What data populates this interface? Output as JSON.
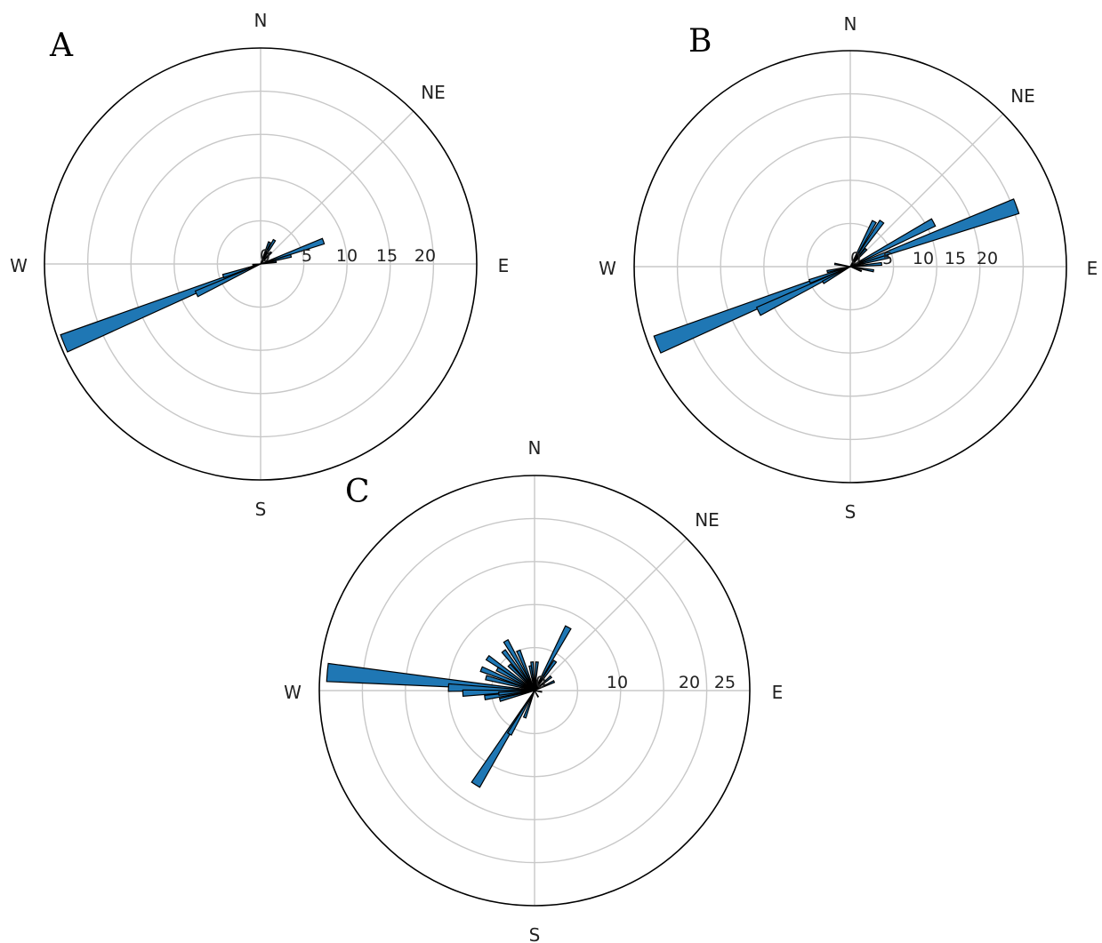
{
  "chart_data": [
    {
      "type": "polar-bar",
      "panel_label": "A",
      "direction_labels": [
        "N",
        "NE",
        "E",
        "S",
        "W"
      ],
      "radial_ticks": [
        "0",
        "5",
        "10",
        "15",
        "20"
      ],
      "rmax": 27.5,
      "bar_width_deg": 5,
      "bar_color": "#1f77b4",
      "bars": [
        {
          "bearing": 22,
          "value": 3
        },
        {
          "bearing": 30,
          "value": 3.5
        },
        {
          "bearing": 42,
          "value": 2
        },
        {
          "bearing": 70,
          "value": 8.5
        },
        {
          "bearing": 75,
          "value": 4
        },
        {
          "bearing": 82,
          "value": 2
        },
        {
          "bearing": 245,
          "value": 9
        },
        {
          "bearing": 248,
          "value": 27
        },
        {
          "bearing": 252,
          "value": 5
        },
        {
          "bearing": 265,
          "value": 1
        }
      ]
    },
    {
      "type": "polar-bar",
      "panel_label": "B",
      "direction_labels": [
        "N",
        "NE",
        "E",
        "S",
        "W"
      ],
      "radial_ticks": [
        "0",
        "5",
        "10",
        "15",
        "20"
      ],
      "rmax": 27.5,
      "bar_width_deg": 5,
      "bar_color": "#1f77b4",
      "bars": [
        {
          "bearing": 28,
          "value": 6.5
        },
        {
          "bearing": 35,
          "value": 7
        },
        {
          "bearing": 42,
          "value": 3
        },
        {
          "bearing": 62,
          "value": 12
        },
        {
          "bearing": 70,
          "value": 22.5
        },
        {
          "bearing": 75,
          "value": 5
        },
        {
          "bearing": 85,
          "value": 4
        },
        {
          "bearing": 100,
          "value": 3
        },
        {
          "bearing": 112,
          "value": 1.5
        },
        {
          "bearing": 240,
          "value": 4
        },
        {
          "bearing": 244,
          "value": 13
        },
        {
          "bearing": 248,
          "value": 26.5
        },
        {
          "bearing": 250,
          "value": 5.5
        },
        {
          "bearing": 258,
          "value": 3
        },
        {
          "bearing": 280,
          "value": 2
        }
      ]
    },
    {
      "type": "polar-bar",
      "panel_label": "C",
      "direction_labels": [
        "N",
        "NE",
        "E",
        "S",
        "W"
      ],
      "radial_ticks": [
        "0",
        "10",
        "20",
        "25"
      ],
      "rmax": 30,
      "bar_width_deg": 5,
      "bar_color": "#1f77b4",
      "bars": [
        {
          "bearing": 5,
          "value": 4
        },
        {
          "bearing": 15,
          "value": 1.5
        },
        {
          "bearing": 28,
          "value": 10
        },
        {
          "bearing": 35,
          "value": 5
        },
        {
          "bearing": 50,
          "value": 3
        },
        {
          "bearing": 65,
          "value": 3
        },
        {
          "bearing": 100,
          "value": 1
        },
        {
          "bearing": 150,
          "value": 1
        },
        {
          "bearing": 200,
          "value": 4
        },
        {
          "bearing": 210,
          "value": 7
        },
        {
          "bearing": 212,
          "value": 15.5
        },
        {
          "bearing": 255,
          "value": 5
        },
        {
          "bearing": 262,
          "value": 7
        },
        {
          "bearing": 265,
          "value": 5
        },
        {
          "bearing": 268,
          "value": 10
        },
        {
          "bearing": 272,
          "value": 12
        },
        {
          "bearing": 275,
          "value": 29
        },
        {
          "bearing": 285,
          "value": 7
        },
        {
          "bearing": 292,
          "value": 8
        },
        {
          "bearing": 300,
          "value": 6
        },
        {
          "bearing": 305,
          "value": 8
        },
        {
          "bearing": 315,
          "value": 5
        },
        {
          "bearing": 322,
          "value": 7
        },
        {
          "bearing": 330,
          "value": 8
        },
        {
          "bearing": 338,
          "value": 6
        },
        {
          "bearing": 350,
          "value": 3.5
        },
        {
          "bearing": 355,
          "value": 4
        }
      ]
    }
  ]
}
